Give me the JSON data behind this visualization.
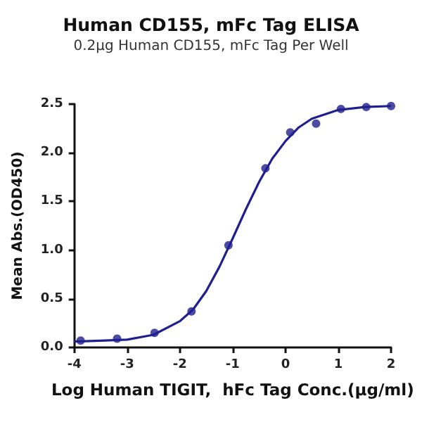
{
  "chart_data": {
    "type": "scatter",
    "title": "Human CD155, mFc Tag ELISA",
    "subtitle": "0.2μg Human CD155, mFc Tag Per Well",
    "xlabel": "Log Human TIGIT,  hFc Tag Conc.(μg/ml)",
    "ylabel": "Mean Abs.(OD450)",
    "xlim": [
      -4,
      2
    ],
    "xticks": [
      -4,
      -3,
      -2,
      -1,
      0,
      1,
      2
    ],
    "ylim": [
      0,
      2.5
    ],
    "yticks": [
      {
        "value": 0,
        "label": "0.0"
      },
      {
        "value": 0.5,
        "label": "0.5"
      },
      {
        "value": 1,
        "label": "1.0"
      },
      {
        "value": 1.5,
        "label": "1.5"
      },
      {
        "value": 2,
        "label": "2.0"
      },
      {
        "value": 2.5,
        "label": "2.5"
      }
    ],
    "grid": false,
    "series": [
      {
        "color": "#1f1f8f",
        "marker": "circle",
        "x": [
          -3.88,
          -3.19,
          -2.48,
          -1.78,
          -1.08,
          -0.38,
          0.09,
          0.58,
          1.05,
          1.53,
          2.0
        ],
        "values": [
          0.07,
          0.09,
          0.15,
          0.37,
          1.05,
          1.84,
          2.21,
          2.3,
          2.45,
          2.47,
          2.48
        ]
      },
      {
        "type": "line",
        "color": "#1f1f8f",
        "marker": "none",
        "line_style": "solid",
        "x": [
          -4,
          -3.5,
          -3,
          -2.5,
          -2,
          -1.75,
          -1.5,
          -1.25,
          -1,
          -0.75,
          -0.5,
          -0.25,
          0,
          0.25,
          0.5,
          1,
          1.5,
          2
        ],
        "values": [
          0.06,
          0.07,
          0.08,
          0.13,
          0.27,
          0.39,
          0.58,
          0.83,
          1.12,
          1.42,
          1.7,
          1.94,
          2.12,
          2.26,
          2.35,
          2.44,
          2.47,
          2.48
        ]
      }
    ]
  }
}
